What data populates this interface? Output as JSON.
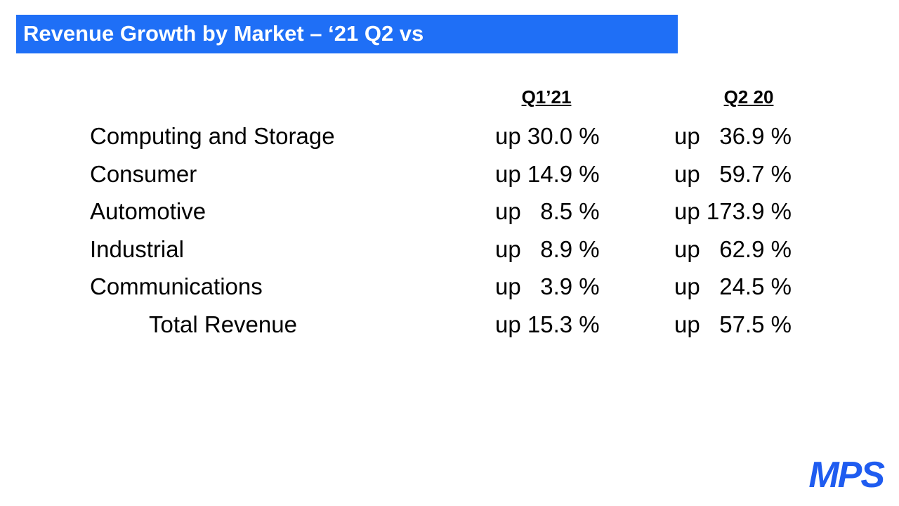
{
  "header": {
    "title": "Revenue Growth by Market – ‘21 Q2 vs"
  },
  "table": {
    "columns": [
      "Q1’21",
      "Q2 20"
    ],
    "rows": [
      {
        "label": "Computing and Storage",
        "cells": [
          "up 30.0 %",
          "up   36.9 %"
        ]
      },
      {
        "label": "Consumer",
        "cells": [
          "up 14.9 %",
          "up   59.7 %"
        ]
      },
      {
        "label": "Automotive",
        "cells": [
          "up   8.5 %",
          "up 173.9 %"
        ]
      },
      {
        "label": "Industrial",
        "cells": [
          "up   8.9 %",
          "up   62.9 %"
        ]
      },
      {
        "label": "Communications",
        "cells": [
          "up   3.9 %",
          "up   24.5 %"
        ]
      },
      {
        "label": "Total Revenue",
        "cells": [
          "up 15.3 %",
          "up   57.5 %"
        ]
      }
    ]
  },
  "logo": {
    "text": "MPS"
  }
}
